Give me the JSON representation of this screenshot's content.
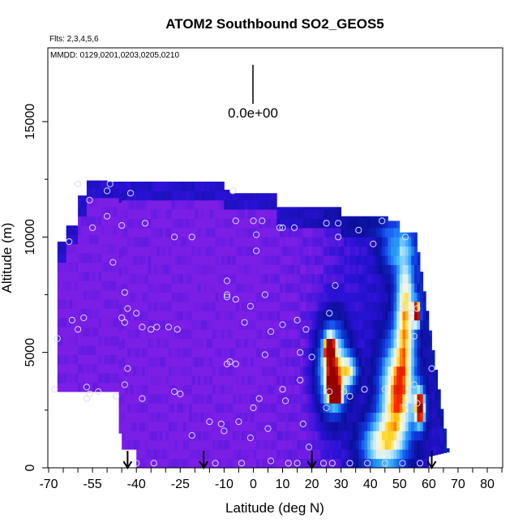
{
  "chart_data": {
    "type": "heatmap",
    "title": "ATOM2 Southbound SO2_GEOS5",
    "info_line1": "Flts: 2,3,4,5,6",
    "info_line2": "MMDD: 0129,0201,0203,0205,0210",
    "xlabel": "Latitude (deg N)",
    "ylabel": "Altitude (m)",
    "xlim": [
      -70,
      85
    ],
    "ylim": [
      0,
      18300
    ],
    "x_tick_labels": [
      "-70",
      "-55",
      "-40",
      "-25",
      "-10",
      "0",
      "10",
      "20",
      "30",
      "40",
      "50",
      "60",
      "70",
      "80"
    ],
    "y_tick_labels": [
      "0",
      "5000",
      "10000",
      "15000"
    ],
    "scale_label": "0.0e+00",
    "arrow_latitudes": [
      -43,
      -17,
      20,
      61
    ],
    "colors": {
      "background": "#7b1ee6",
      "low": "#2a12d6",
      "edge": "#0a0f9a",
      "plume_mid": "#29a5ff",
      "plume_high": "#c8ecff",
      "hot": "#ff2a00",
      "warm": "#ffd21a",
      "marker": "#d9d9ff"
    },
    "plumes": [
      {
        "lat": 52,
        "alt": 7000,
        "dlat": 3.5,
        "dalt": 2800,
        "value": 0.75
      },
      {
        "lat": 47,
        "alt": 9500,
        "dlat": 4.0,
        "dalt": 1000,
        "value": 0.35
      },
      {
        "lat": 56,
        "alt": 6700,
        "dlat": 1.2,
        "dalt": 500,
        "value": 1.05
      },
      {
        "lat": 27,
        "alt": 4300,
        "dlat": 5.0,
        "dalt": 1900,
        "value": 0.95
      },
      {
        "lat": 26,
        "alt": 5200,
        "dlat": 1.5,
        "dalt": 500,
        "value": 1.05
      },
      {
        "lat": 27,
        "alt": 3800,
        "dlat": 1.5,
        "dalt": 400,
        "value": 1.15
      },
      {
        "lat": 28,
        "alt": 3200,
        "dlat": 2.2,
        "dalt": 400,
        "value": 1.25
      },
      {
        "lat": 49,
        "alt": 3200,
        "dlat": 6.0,
        "dalt": 2400,
        "value": 0.85
      },
      {
        "lat": 57,
        "alt": 2600,
        "dlat": 1.8,
        "dalt": 800,
        "value": 1.08
      },
      {
        "lat": 43,
        "alt": 1000,
        "dlat": 7.0,
        "dalt": 1200,
        "value": 0.6
      },
      {
        "lat": 33,
        "alt": 4200,
        "dlat": 3.0,
        "dalt": 700,
        "value": 0.55
      }
    ],
    "points": [
      [
        -60,
        12300
      ],
      [
        -56,
        11600
      ],
      [
        -49,
        12300
      ],
      [
        -50,
        12000
      ],
      [
        -42,
        11900
      ],
      [
        -50,
        10900
      ],
      [
        -55,
        10400
      ],
      [
        -37,
        10600
      ],
      [
        -45,
        10500
      ],
      [
        -63,
        9800
      ],
      [
        -21,
        10000
      ],
      [
        -27,
        10000
      ],
      [
        -7,
        12000
      ],
      [
        -6,
        10700
      ],
      [
        0,
        10700
      ],
      [
        3,
        10700
      ],
      [
        1,
        10100
      ],
      [
        9,
        10400
      ],
      [
        10,
        10400
      ],
      [
        14,
        10400
      ],
      [
        25,
        10600
      ],
      [
        29,
        10000
      ],
      [
        29,
        10600
      ],
      [
        36,
        10300
      ],
      [
        44,
        10700
      ],
      [
        41,
        9700
      ],
      [
        52,
        10000
      ],
      [
        1,
        9400
      ],
      [
        -48,
        8900
      ],
      [
        -9,
        8100
      ],
      [
        -9,
        7500
      ],
      [
        -9,
        7400
      ],
      [
        -6,
        7300
      ],
      [
        -44,
        7600
      ],
      [
        -43,
        6900
      ],
      [
        -40,
        6700
      ],
      [
        -62,
        6400
      ],
      [
        -58,
        6500
      ],
      [
        -45,
        6500
      ],
      [
        -44,
        6300
      ],
      [
        -38,
        6100
      ],
      [
        -35,
        6000
      ],
      [
        -33,
        6100
      ],
      [
        -29,
        6100
      ],
      [
        -26,
        6000
      ],
      [
        -3,
        6300
      ],
      [
        -1,
        7000
      ],
      [
        4,
        7500
      ],
      [
        6,
        5900
      ],
      [
        10,
        6200
      ],
      [
        15,
        6400
      ],
      [
        18,
        6000
      ],
      [
        26,
        6700
      ],
      [
        28,
        7900
      ],
      [
        56,
        6900
      ],
      [
        51,
        6900
      ],
      [
        54,
        6700
      ],
      [
        55,
        5700
      ],
      [
        -67,
        5600
      ],
      [
        -60,
        6000
      ],
      [
        -8,
        4600
      ],
      [
        -9,
        4500
      ],
      [
        -6,
        4500
      ],
      [
        4,
        4900
      ],
      [
        -43,
        4300
      ],
      [
        -44,
        3600
      ],
      [
        -57,
        3500
      ],
      [
        -56,
        3200
      ],
      [
        -57,
        3000
      ],
      [
        -53,
        3300
      ],
      [
        -47,
        3100
      ],
      [
        -38,
        3000
      ],
      [
        -27,
        3300
      ],
      [
        -25,
        3200
      ],
      [
        -68,
        3400
      ],
      [
        2,
        3000
      ],
      [
        10,
        3400
      ],
      [
        16,
        3800
      ],
      [
        16,
        5000
      ],
      [
        20,
        4800
      ],
      [
        26,
        3300
      ],
      [
        31,
        3300
      ],
      [
        33,
        3100
      ],
      [
        38,
        3400
      ],
      [
        45,
        3400
      ],
      [
        52,
        2700
      ],
      [
        56,
        2800
      ],
      [
        55,
        3600
      ],
      [
        61,
        4300
      ],
      [
        -5,
        2000
      ],
      [
        0,
        2600
      ],
      [
        -10,
        1600
      ],
      [
        -15,
        2000
      ],
      [
        -21,
        1400
      ],
      [
        5,
        1700
      ],
      [
        11,
        2900
      ],
      [
        17,
        1900
      ],
      [
        25,
        2600
      ],
      [
        -40,
        200
      ],
      [
        -34,
        200
      ],
      [
        -13,
        200
      ],
      [
        -4,
        200
      ],
      [
        -1,
        1300
      ],
      [
        6,
        300
      ],
      [
        12,
        200
      ],
      [
        15,
        200
      ],
      [
        19,
        900
      ],
      [
        24,
        200
      ],
      [
        27,
        200
      ],
      [
        33,
        200
      ],
      [
        39,
        200
      ],
      [
        45,
        200
      ],
      [
        51,
        200
      ],
      [
        57,
        200
      ],
      [
        -11,
        1900
      ]
    ]
  }
}
